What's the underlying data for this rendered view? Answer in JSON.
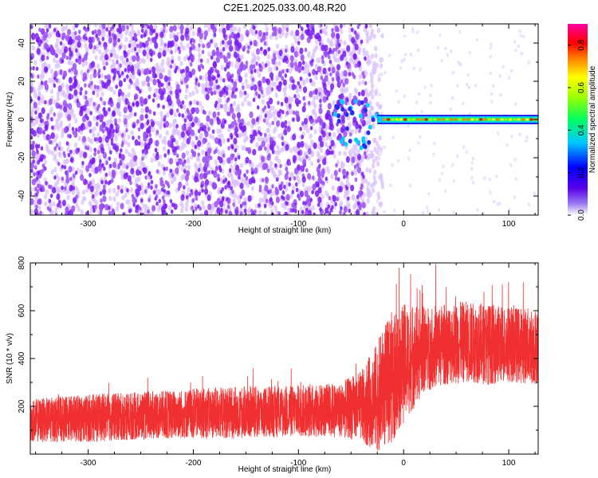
{
  "title": "C2E1.2025.033.00.48.R20",
  "colors": {
    "series": "#f03030",
    "spectrum_purple": "#7a1cf2",
    "spectrum_light": "#d9c2fb",
    "axis": "#000000"
  },
  "chart_data": [
    {
      "type": "heatmap",
      "xlabel": "Height of straight line (km)",
      "ylabel": "Frequency (Hz)",
      "xlim": [
        -355,
        128
      ],
      "ylim": [
        -50,
        50
      ],
      "xticks": [
        -300,
        -200,
        -100,
        0,
        100
      ],
      "yticks": [
        -40,
        -20,
        0,
        20,
        40
      ],
      "colorbar": {
        "label": "Normalized spectral amplitude",
        "range": [
          0,
          0.9
        ],
        "ticks": [
          "0.0",
          "0.2",
          "0.4",
          "0.6",
          "0.8"
        ],
        "colormap": "hsv-like (purple low → red high)"
      },
      "features": {
        "noise_extent_km": [
          -355,
          -25
        ],
        "carrier_start_km": -25,
        "carrier_freq_hz": 0,
        "carrier_amplitude": 0.85,
        "transition_km": [
          -65,
          -25
        ]
      }
    },
    {
      "type": "line",
      "xlabel": "Height of straight line (km)",
      "ylabel": "SNR (10 * v/v)",
      "xlim": [
        -355,
        128
      ],
      "ylim": [
        0,
        800
      ],
      "xticks": [
        -300,
        -200,
        -100,
        0,
        100
      ],
      "yticks": [
        200,
        400,
        600,
        800
      ],
      "series": [
        {
          "x": [
            -355,
            -300,
            -250,
            -200,
            -150,
            -100,
            -60,
            -40,
            -25,
            -20,
            -10,
            0,
            10,
            20,
            40,
            60,
            80,
            100,
            128
          ],
          "mean": [
            140,
            150,
            160,
            170,
            175,
            180,
            185,
            200,
            240,
            270,
            330,
            380,
            410,
            440,
            460,
            470,
            460,
            460,
            450
          ],
          "spread": [
            90,
            100,
            100,
            105,
            110,
            110,
            115,
            150,
            230,
            250,
            280,
            250,
            220,
            180,
            170,
            170,
            170,
            160,
            160
          ]
        }
      ]
    }
  ]
}
